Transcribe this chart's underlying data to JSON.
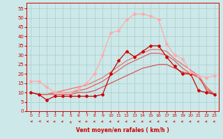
{
  "xlabel": "Vent moyen/en rafales ( km/h )",
  "background_color": "#cce8e8",
  "grid_color": "#aacccc",
  "x": [
    0,
    1,
    2,
    3,
    4,
    5,
    6,
    7,
    8,
    9,
    10,
    11,
    12,
    13,
    14,
    15,
    16,
    17,
    18,
    19,
    20,
    21,
    22,
    23
  ],
  "series": [
    {
      "y": [
        10,
        9,
        6,
        8,
        8,
        8,
        8,
        8,
        8,
        9,
        20,
        27,
        32,
        29,
        32,
        35,
        35,
        29,
        24,
        20,
        20,
        11,
        10,
        9
      ],
      "color": "#cc0000",
      "lw": 0.9,
      "marker": "D",
      "ms": 2.0
    },
    {
      "y": [
        10,
        9,
        9,
        9,
        9,
        9,
        10,
        10,
        11,
        13,
        15,
        17,
        19,
        21,
        23,
        24,
        25,
        25,
        23,
        21,
        20,
        19,
        11,
        9
      ],
      "color": "#dd4444",
      "lw": 0.8,
      "marker": null,
      "ms": 0
    },
    {
      "y": [
        10,
        9,
        9,
        10,
        10,
        10,
        11,
        12,
        14,
        16,
        19,
        22,
        25,
        27,
        29,
        31,
        31,
        30,
        27,
        23,
        20,
        18,
        12,
        9
      ],
      "color": "#dd5555",
      "lw": 0.8,
      "marker": null,
      "ms": 0
    },
    {
      "y": [
        10,
        9,
        9,
        10,
        11,
        12,
        13,
        14,
        16,
        18,
        21,
        24,
        27,
        29,
        31,
        33,
        33,
        32,
        28,
        25,
        22,
        19,
        13,
        9
      ],
      "color": "#ee6666",
      "lw": 0.8,
      "marker": null,
      "ms": 0
    },
    {
      "y": [
        16,
        16,
        13,
        10,
        10,
        10,
        12,
        15,
        20,
        30,
        42,
        43,
        49,
        52,
        52,
        51,
        49,
        36,
        30,
        28,
        21,
        19,
        18,
        19
      ],
      "color": "#ffaaaa",
      "lw": 0.9,
      "marker": "D",
      "ms": 2.0
    }
  ],
  "wind_arrow_angles": [
    270,
    240,
    270,
    225,
    225,
    0,
    270,
    225,
    225,
    225,
    225,
    225,
    225,
    225,
    225,
    225,
    225,
    225,
    225,
    225,
    225,
    225,
    225,
    225
  ],
  "ylim": [
    0,
    58
  ],
  "yticks": [
    0,
    5,
    10,
    15,
    20,
    25,
    30,
    35,
    40,
    45,
    50,
    55
  ],
  "xlim": [
    -0.5,
    23.5
  ],
  "xticks": [
    0,
    1,
    2,
    3,
    4,
    5,
    6,
    7,
    8,
    9,
    10,
    11,
    12,
    13,
    14,
    15,
    16,
    17,
    18,
    19,
    20,
    21,
    22,
    23
  ]
}
